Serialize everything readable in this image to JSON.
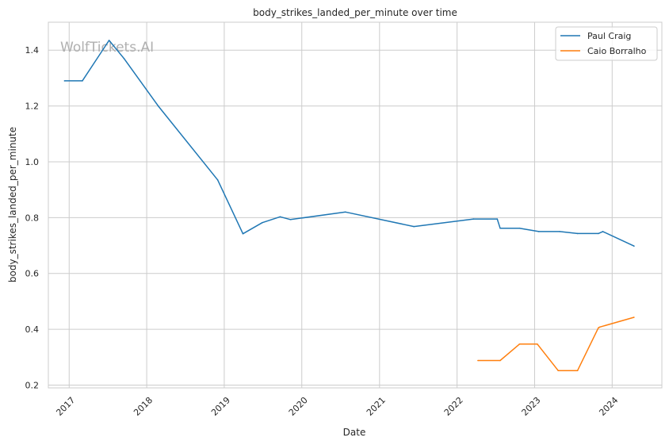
{
  "chart_data": {
    "type": "line",
    "title": "body_strikes_landed_per_minute over time",
    "xlabel": "Date",
    "ylabel": "body_strikes_landed_per_minute",
    "watermark": "WolfTickets.AI",
    "x_ticks": [
      "2017",
      "2018",
      "2019",
      "2020",
      "2021",
      "2022",
      "2023",
      "2024"
    ],
    "y_ticks": [
      "0.2",
      "0.4",
      "0.6",
      "0.8",
      "1.0",
      "1.2",
      "1.4"
    ],
    "xlim": [
      "2016-09-25",
      "2024-08-22"
    ],
    "ylim": [
      0.19,
      1.5
    ],
    "grid": true,
    "legend_position": "top-right",
    "series": [
      {
        "name": "Paul Craig",
        "color": "#1f77b4",
        "x": [
          "2016-12-10",
          "2017-03-04",
          "2017-07-08",
          "2017-09-16",
          "2018-02-24",
          "2018-12-01",
          "2019-03-30",
          "2019-06-29",
          "2019-09-21",
          "2019-11-09",
          "2020-07-25",
          "2021-06-12",
          "2022-03-19",
          "2022-07-09",
          "2022-07-23",
          "2022-10-22",
          "2023-01-21",
          "2023-04-29",
          "2023-07-22",
          "2023-10-28",
          "2023-11-18",
          "2024-04-13"
        ],
        "values": [
          1.29,
          1.29,
          1.435,
          1.37,
          1.2,
          0.935,
          0.742,
          0.782,
          0.803,
          0.793,
          0.82,
          0.768,
          0.795,
          0.795,
          0.762,
          0.762,
          0.75,
          0.75,
          0.743,
          0.743,
          0.75,
          0.698
        ]
      },
      {
        "name": "Caio Borralho",
        "color": "#ff7f0e",
        "x": [
          "2022-04-09",
          "2022-07-23",
          "2022-10-22",
          "2023-01-14",
          "2023-04-22",
          "2023-07-22",
          "2023-10-28",
          "2023-11-04",
          "2024-04-13"
        ],
        "values": [
          0.288,
          0.288,
          0.347,
          0.347,
          0.252,
          0.252,
          0.405,
          0.408,
          0.443
        ]
      }
    ]
  }
}
